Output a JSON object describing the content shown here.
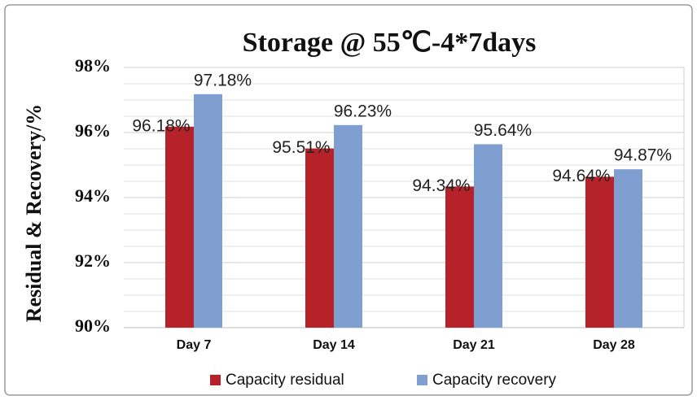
{
  "chart_data": {
    "type": "bar",
    "title": "Storage @ 55℃-4*7days",
    "y_label": "Residual & Recovery/%",
    "categories": [
      "Day 7",
      "Day 14",
      "Day 21",
      "Day 28"
    ],
    "series": [
      {
        "name": "Capacity residual",
        "color": "#b5222a",
        "values": [
          96.18,
          95.51,
          94.34,
          94.64
        ],
        "value_labels": [
          "96.18%",
          "95.51%",
          "94.34%",
          "94.64%"
        ]
      },
      {
        "name": "Capacity recovery",
        "color": "#7f9fd1",
        "values": [
          97.18,
          96.23,
          95.64,
          94.87
        ],
        "value_labels": [
          "97.18%",
          "96.23%",
          "95.64%",
          "94.87%"
        ]
      }
    ],
    "ylim": [
      90,
      98
    ],
    "yticks": [
      {
        "value": 90,
        "label": "90%"
      },
      {
        "value": 92,
        "label": "92%"
      },
      {
        "value": 94,
        "label": "94%"
      },
      {
        "value": 96,
        "label": "96%"
      },
      {
        "value": 98,
        "label": "98%"
      }
    ],
    "minor_yticks": [
      90.5,
      91,
      91.5,
      92.5,
      93,
      93.5,
      94.5,
      95,
      95.5,
      96.5,
      97,
      97.5
    ],
    "grid": true,
    "legend": "bottom"
  }
}
